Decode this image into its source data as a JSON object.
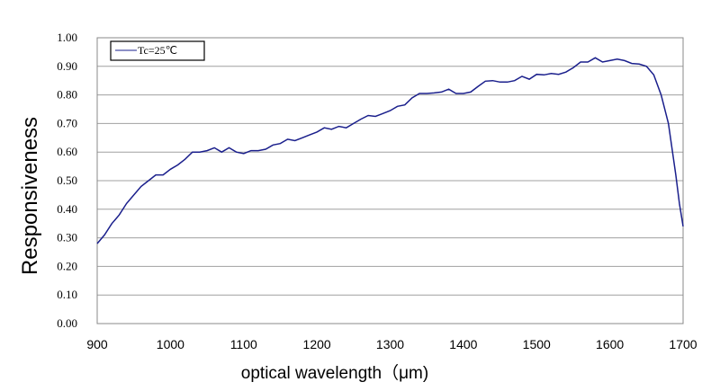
{
  "chart_data": {
    "type": "line",
    "title": "",
    "xlabel": "optical wavelength（μm)",
    "ylabel": "Responsiveness",
    "xlim": [
      900,
      1700
    ],
    "ylim": [
      0,
      1
    ],
    "grid": "horizontal",
    "legend_position": "top-left",
    "x_ticks": [
      "900",
      "1000",
      "1100",
      "1200",
      "1300",
      "1400",
      "1500",
      "1600",
      "1700"
    ],
    "y_ticks": [
      "0.00",
      "0.10",
      "0.20",
      "0.30",
      "0.40",
      "0.50",
      "0.60",
      "0.70",
      "0.80",
      "0.90",
      "1.00"
    ],
    "series": [
      {
        "name": "Tc=25℃",
        "color": "#1a1f8c",
        "x": [
          900,
          910,
          920,
          930,
          940,
          950,
          960,
          970,
          980,
          990,
          1000,
          1010,
          1020,
          1030,
          1040,
          1050,
          1060,
          1070,
          1080,
          1090,
          1100,
          1110,
          1120,
          1130,
          1140,
          1150,
          1160,
          1170,
          1180,
          1190,
          1200,
          1210,
          1220,
          1230,
          1240,
          1250,
          1260,
          1270,
          1280,
          1290,
          1300,
          1310,
          1320,
          1330,
          1340,
          1350,
          1360,
          1370,
          1380,
          1390,
          1400,
          1410,
          1420,
          1430,
          1440,
          1450,
          1460,
          1470,
          1480,
          1490,
          1500,
          1510,
          1520,
          1530,
          1540,
          1550,
          1560,
          1570,
          1580,
          1590,
          1600,
          1610,
          1620,
          1630,
          1640,
          1650,
          1660,
          1670,
          1680,
          1690,
          1695,
          1700
        ],
        "y": [
          0.28,
          0.31,
          0.35,
          0.38,
          0.42,
          0.45,
          0.48,
          0.5,
          0.52,
          0.52,
          0.54,
          0.555,
          0.575,
          0.6,
          0.6,
          0.605,
          0.615,
          0.6,
          0.615,
          0.6,
          0.595,
          0.605,
          0.605,
          0.61,
          0.625,
          0.63,
          0.645,
          0.64,
          0.65,
          0.66,
          0.67,
          0.685,
          0.68,
          0.69,
          0.685,
          0.7,
          0.715,
          0.728,
          0.725,
          0.735,
          0.745,
          0.76,
          0.765,
          0.79,
          0.805,
          0.805,
          0.807,
          0.81,
          0.82,
          0.805,
          0.805,
          0.81,
          0.83,
          0.848,
          0.85,
          0.845,
          0.845,
          0.85,
          0.865,
          0.855,
          0.872,
          0.87,
          0.875,
          0.872,
          0.88,
          0.895,
          0.915,
          0.915,
          0.93,
          0.915,
          0.92,
          0.925,
          0.92,
          0.91,
          0.908,
          0.9,
          0.87,
          0.8,
          0.7,
          0.52,
          0.42,
          0.34
        ]
      }
    ]
  }
}
